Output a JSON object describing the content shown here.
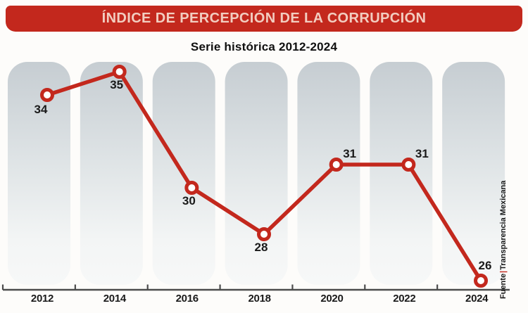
{
  "header": {
    "title": "ÍNDICE DE PERCEPCIÓN DE LA CORRUPCIÓN"
  },
  "subtitle": "Serie histórica 2012-2024",
  "source": {
    "prefix": "Fuente",
    "separator": "|",
    "name": "Transparencia Mexicana"
  },
  "colors": {
    "accent_red": "#c3281d",
    "banner_text": "#f2cdc0",
    "pillar_top": "#c6cdd2",
    "pillar_mid": "#dfe4e6",
    "pillar_low": "#f3f5f5",
    "pillar_bottom": "#f7f8f8",
    "axis": "#4c4c4c",
    "label": "#1a1a1a"
  },
  "chart_data": {
    "type": "line",
    "title": "ÍNDICE DE PERCEPCIÓN DE LA CORRUPCIÓN",
    "subtitle": "Serie histórica 2012-2024",
    "categories": [
      "2012",
      "2014",
      "2016",
      "2018",
      "2020",
      "2022",
      "2024"
    ],
    "values": [
      34,
      35,
      30,
      28,
      31,
      31,
      26
    ],
    "ylim": [
      24,
      36
    ],
    "grid": false,
    "legend": "none",
    "marker": "open-circle",
    "label_positions": [
      "below-left",
      "below",
      "below",
      "below",
      "above-right",
      "above-right",
      "above"
    ],
    "source": "Fuente|Transparencia Mexicana"
  }
}
